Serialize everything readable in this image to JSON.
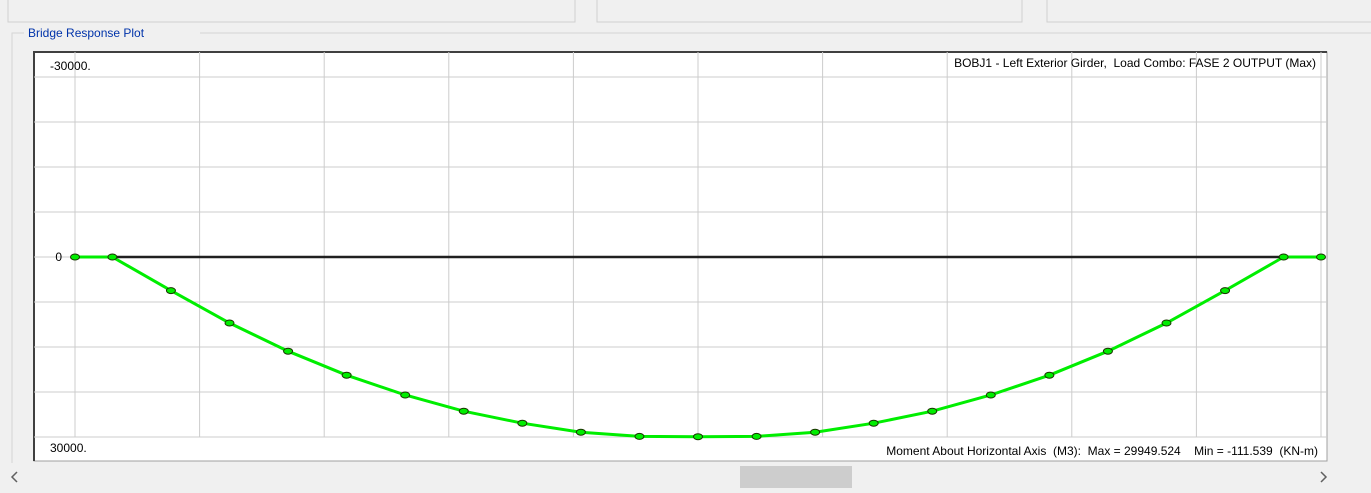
{
  "group_title": "Bridge Response Plot",
  "chart_data": {
    "type": "line",
    "title": "BOBJ1 - Left Exterior Girder,  Load Combo: FASE 2 OUTPUT (Max)",
    "footer": "Moment About Horizontal Axis  (M3):  Max = 29949.524    Min = -111.539  (KN-m)",
    "x": [
      0,
      3,
      7.7,
      12.4,
      17.1,
      21.8,
      26.5,
      31.2,
      35.9,
      40.6,
      45.3,
      50,
      54.7,
      59.4,
      64.1,
      68.8,
      73.5,
      78.2,
      82.9,
      87.6,
      92.3,
      97,
      100
    ],
    "series": [
      {
        "name": "M3",
        "color": "#00ee00",
        "values": [
          0,
          0,
          5600,
          11000,
          15700,
          19700,
          23000,
          25700,
          27700,
          29200,
          29900,
          29950,
          29900,
          29200,
          27700,
          25700,
          23000,
          19700,
          15700,
          11000,
          5600,
          0,
          0
        ]
      }
    ],
    "xlim": [
      0,
      100
    ],
    "xgrid": [
      0,
      10,
      20,
      30,
      40,
      50,
      60,
      70,
      80,
      90,
      100
    ],
    "ylim": [
      -30000,
      30000
    ],
    "y_inverted": true,
    "yticks": [
      {
        "value": -30000,
        "label": "-30000."
      },
      0,
      {
        "value": 30000,
        "label": "30000."
      }
    ],
    "ygrid": [
      -30000,
      -22500,
      -15000,
      -7500,
      0,
      7500,
      15000,
      22500,
      30000
    ],
    "grid": true
  }
}
